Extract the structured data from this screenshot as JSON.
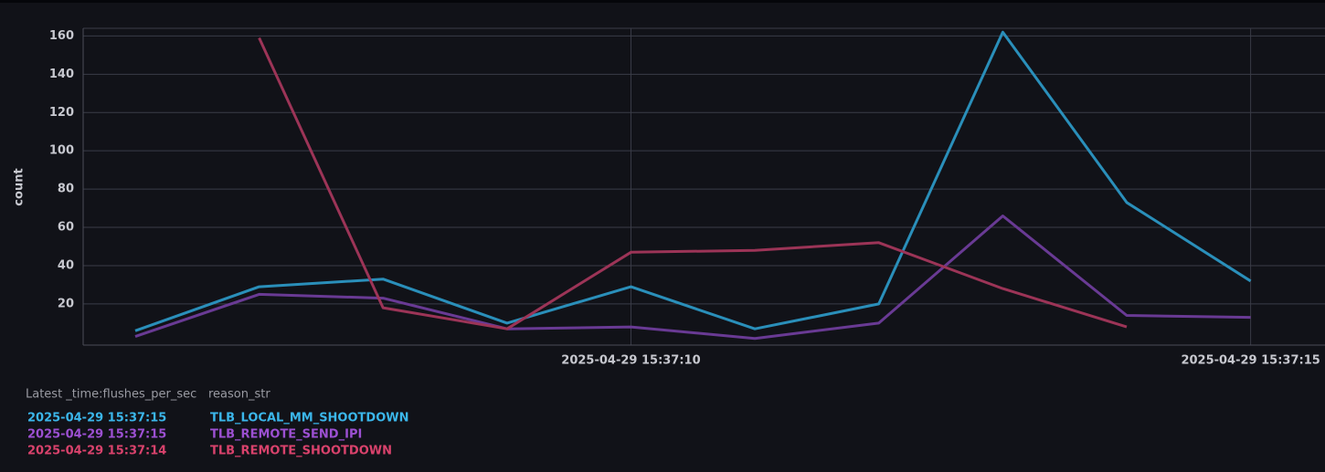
{
  "chart_data": {
    "type": "line",
    "y_label": "count",
    "x": [
      "2025-04-29 15:37:06",
      "2025-04-29 15:37:07",
      "2025-04-29 15:37:08",
      "2025-04-29 15:37:09",
      "2025-04-29 15:37:10",
      "2025-04-29 15:37:11",
      "2025-04-29 15:37:12",
      "2025-04-29 15:37:13",
      "2025-04-29 15:37:14",
      "2025-04-29 15:37:15"
    ],
    "series": [
      {
        "name": "TLB_LOCAL_MM_SHOOTDOWN",
        "color": "#2a8fba",
        "label_color": "#3bb6ea",
        "values": [
          6,
          29,
          33,
          10,
          29,
          7,
          20,
          162,
          73,
          32
        ]
      },
      {
        "name": "TLB_REMOTE_SEND_IPI",
        "color": "#693a94",
        "label_color": "#9c50d2",
        "values": [
          3,
          25,
          23,
          7,
          8,
          2,
          10,
          66,
          14,
          13
        ]
      },
      {
        "name": "TLB_REMOTE_SHOOTDOWN",
        "color": "#9c3457",
        "label_color": "#d9426c",
        "values": [
          null,
          159,
          18,
          7,
          47,
          48,
          52,
          28,
          8,
          null
        ]
      }
    ],
    "xlim": [
      "2025-04-29 15:37:05.580",
      "2025-04-29 15:37:15.600"
    ],
    "xticks": [
      "2025-04-29 15:37:10",
      "2025-04-29 15:37:15"
    ],
    "ylim": [
      -1.5,
      164
    ],
    "yticks": [
      20,
      40,
      60,
      80,
      100,
      120,
      140,
      160
    ],
    "grid": true
  },
  "legend": {
    "headers": [
      "Latest _time:flushes_per_sec",
      "reason_str"
    ],
    "latest": [
      "2025-04-29 15:37:15",
      "2025-04-29 15:37:15",
      "2025-04-29 15:37:14"
    ]
  }
}
